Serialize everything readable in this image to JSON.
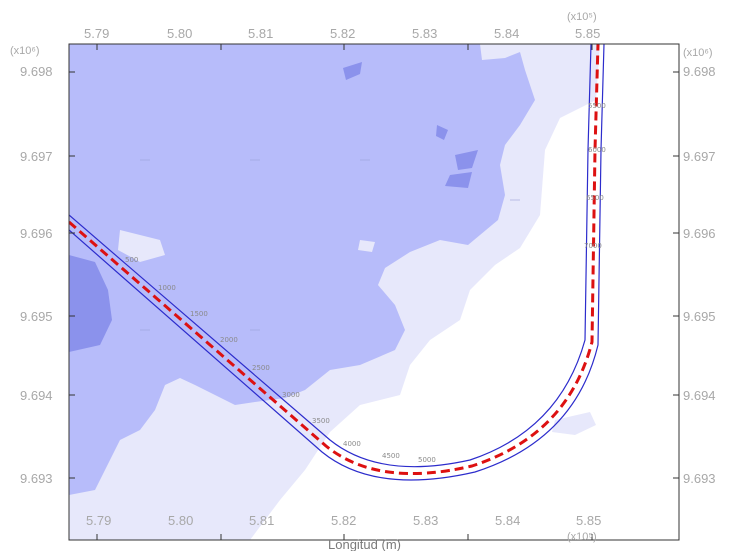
{
  "map": {
    "x_axis": {
      "ticks": [
        "5.79",
        "5.80",
        "5.81",
        "5.82",
        "5.83",
        "5.84",
        "5.85"
      ],
      "exponent_top": "(x10⁵)",
      "exponent_bottom": "(x10⁵)",
      "title": "Longitud (m)"
    },
    "y_axis": {
      "ticks": [
        "9.698",
        "9.697",
        "9.696",
        "9.695",
        "9.694",
        "9.693"
      ],
      "exponent_left": "(x10⁶)",
      "exponent_right": "(x10⁶)"
    },
    "route": {
      "chainage_labels": [
        "500",
        "1000",
        "1500",
        "2000",
        "2500",
        "3000",
        "3500",
        "4000",
        "4500",
        "5000",
        "5500",
        "6000",
        "6500",
        "7000"
      ]
    },
    "colors": {
      "shade_dark": "#8b92ec",
      "shade_mid": "#b7bcfa",
      "shade_light": "#e7e8fb",
      "background": "#ffffff",
      "route_outline": "#2c2ccc",
      "route_center": "#dd1111",
      "frame": "#333333"
    }
  }
}
